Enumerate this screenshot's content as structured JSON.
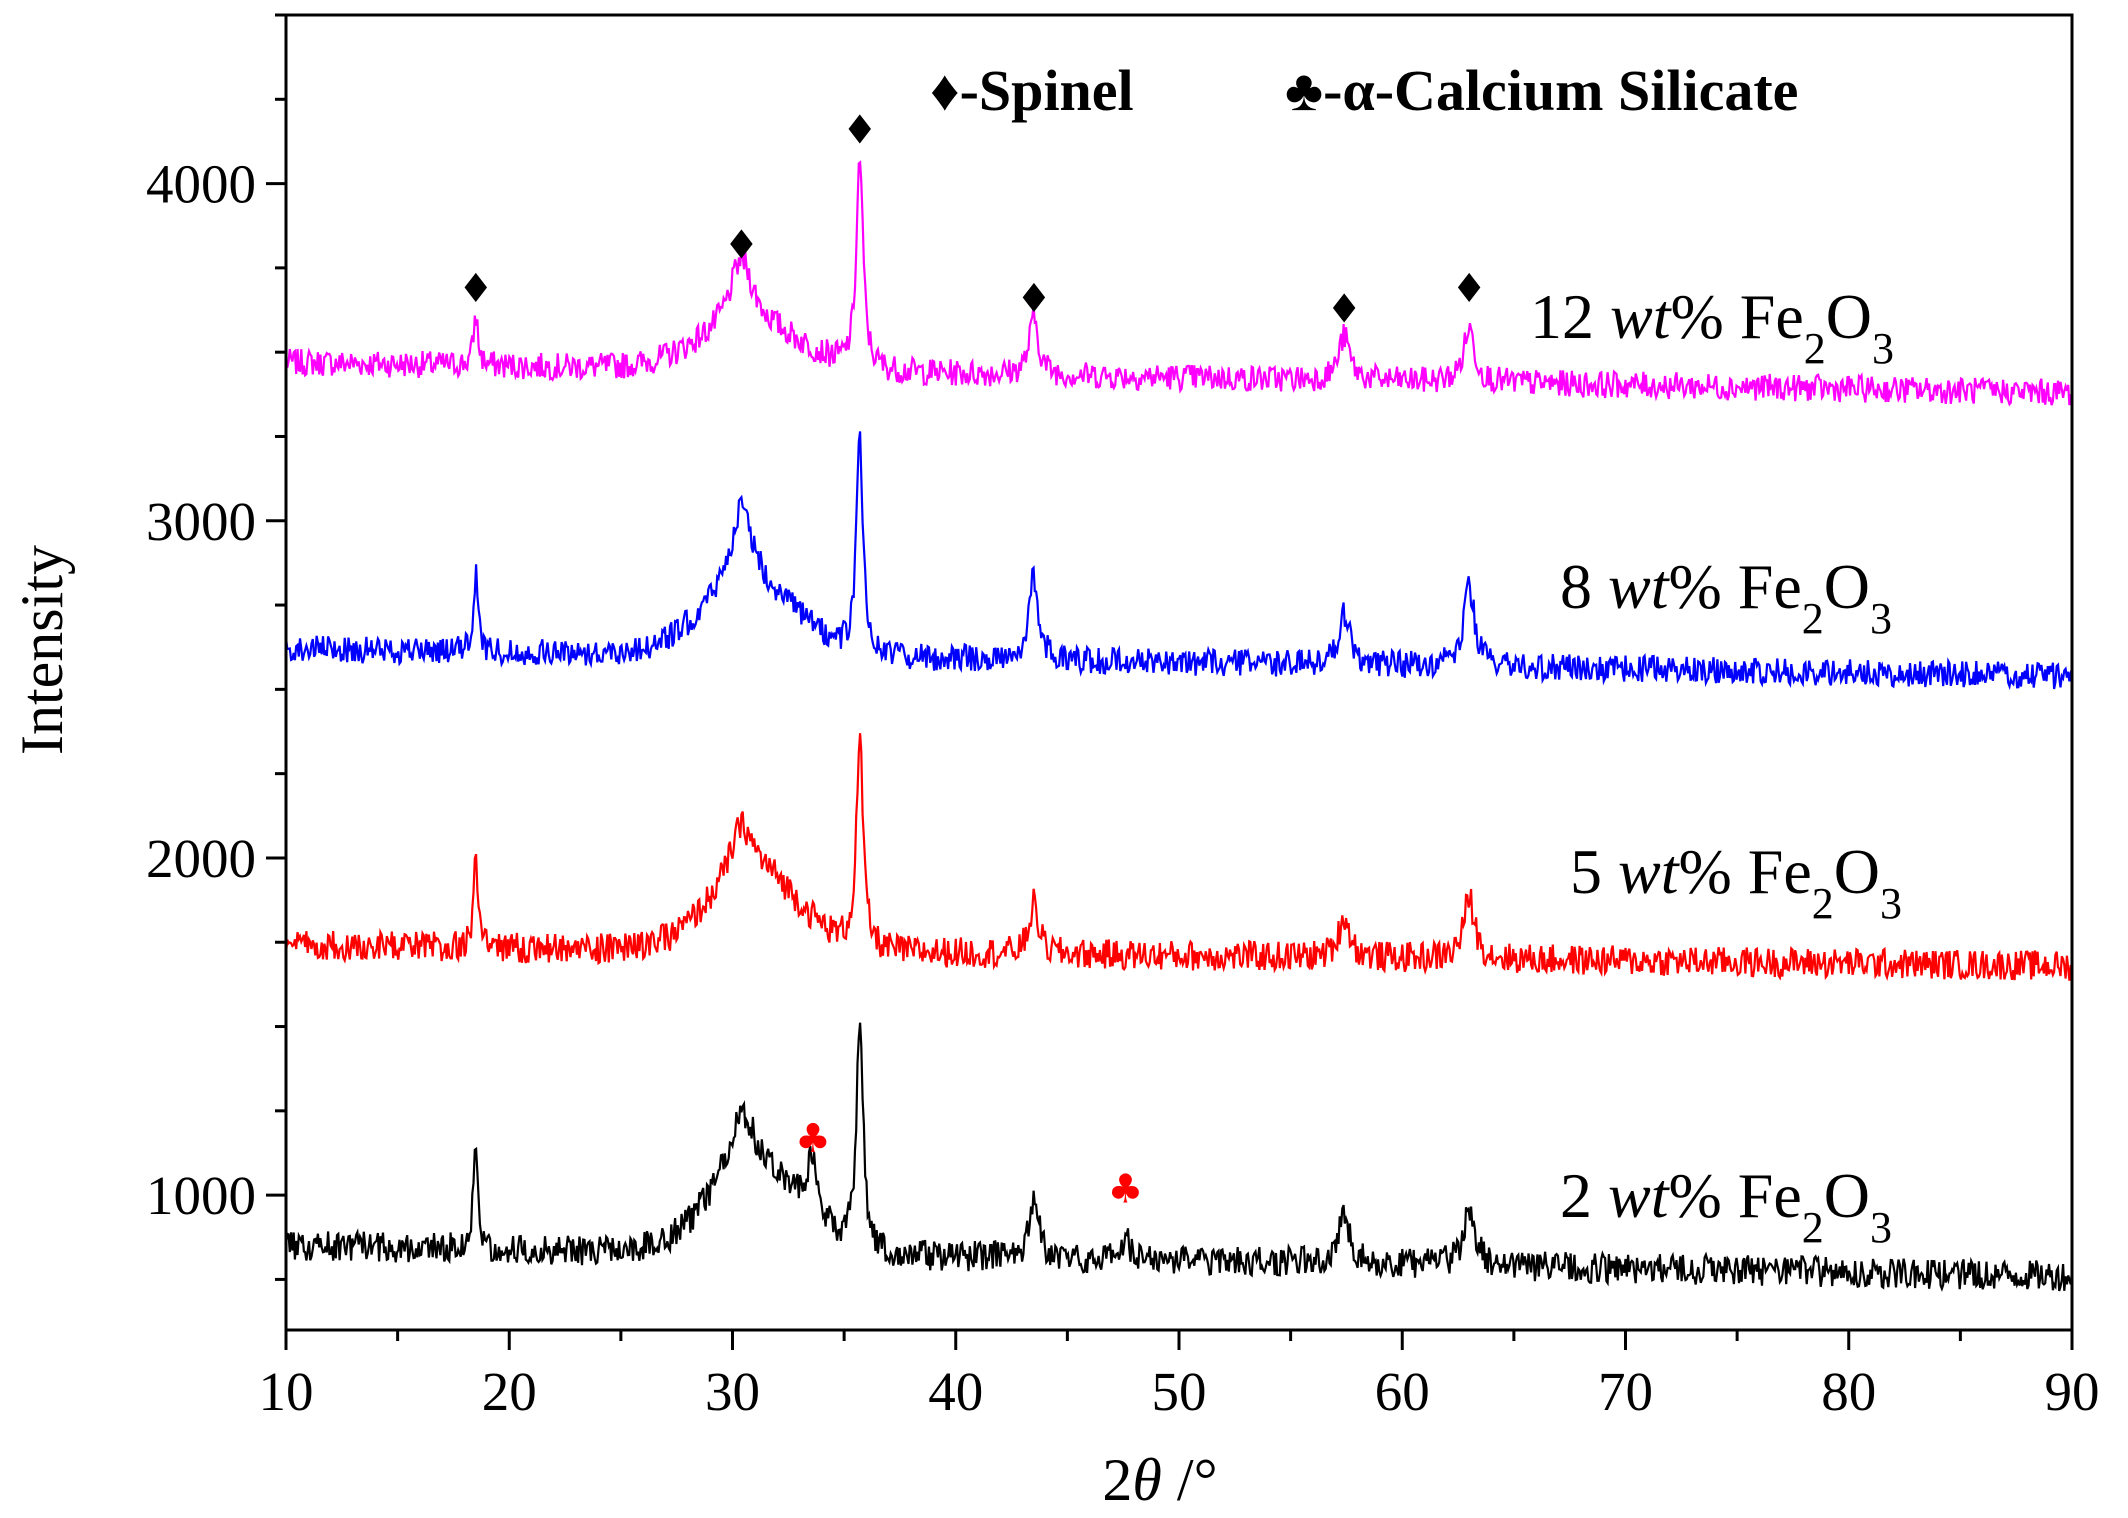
{
  "chart_data": {
    "type": "line",
    "title": "",
    "xlabel_prefix": "2",
    "xlabel_var": "θ",
    "xlabel_unit": " /°",
    "ylabel": "Intensity",
    "xlim": [
      10,
      90
    ],
    "ylim": [
      600,
      4500
    ],
    "x_ticks": [
      10,
      20,
      30,
      40,
      50,
      60,
      70,
      80,
      90
    ],
    "x_tick_labels": [
      "10",
      "20",
      "30",
      "40",
      "50",
      "60",
      "70",
      "80",
      "90"
    ],
    "y_ticks": [
      1000,
      2000,
      3000,
      4000
    ],
    "y_tick_labels": [
      "1000",
      "2000",
      "3000",
      "4000"
    ],
    "grid": false,
    "legend_position": "top-right",
    "legend": [
      {
        "symbol": "♦",
        "text": "-Spinel",
        "color": "#000000"
      },
      {
        "symbol": "♣",
        "text": "-α-Calcium Silicate",
        "color": "#000000"
      }
    ],
    "peaks_2theta": [
      18.5,
      30.4,
      35.7,
      43.5,
      57.4,
      63.0
    ],
    "peak_widths": [
      0.12,
      0.6,
      0.18,
      0.25,
      0.3,
      0.3
    ],
    "series": [
      {
        "label_num": "12",
        "label_unit": "wt",
        "label_pct": "%",
        "label_fe": "Fe",
        "label_sub1": "2",
        "label_o": "O",
        "label_sub2": "3",
        "color": "#ff00ff",
        "baseline_start": 3470,
        "baseline_end": 3380,
        "noise": 40,
        "hump_center": 30.8,
        "hump_height": 130,
        "hump_width": 3.2,
        "peak_heights": [
          150,
          200,
          620,
          170,
          130,
          160
        ]
      },
      {
        "label_num": "8",
        "label_unit": "wt",
        "label_pct": "%",
        "label_fe": "Fe",
        "label_sub1": "2",
        "label_o": "O",
        "label_sub2": "3",
        "color": "#0000ff",
        "baseline_start": 2620,
        "baseline_end": 2540,
        "noise": 40,
        "hump_center": 30.8,
        "hump_height": 200,
        "hump_width": 3.0,
        "peak_heights": [
          230,
          240,
          620,
          250,
          150,
          230
        ]
      },
      {
        "label_num": "5",
        "label_unit": "wt",
        "label_pct": "%",
        "label_fe": "Fe",
        "label_sub1": "2",
        "label_o": "O",
        "label_sub2": "3",
        "color": "#ff0000",
        "baseline_start": 1740,
        "baseline_end": 1680,
        "noise": 45,
        "hump_center": 31.0,
        "hump_height": 230,
        "hump_width": 2.8,
        "peak_heights": [
          270,
          150,
          620,
          150,
          120,
          180
        ]
      },
      {
        "label_num": "2",
        "label_unit": "wt",
        "label_pct": "%",
        "label_fe": "Fe",
        "label_sub1": "2",
        "label_o": "O",
        "label_sub2": "3",
        "color": "#000000",
        "baseline_start": 850,
        "baseline_end": 760,
        "noise": 45,
        "hump_center": 31.0,
        "hump_height": 260,
        "hump_width": 2.8,
        "peak_heights": [
          330,
          170,
          680,
          180,
          150,
          180
        ],
        "extra_peaks": [
          {
            "x": 33.6,
            "h": 180,
            "w": 0.3
          },
          {
            "x": 47.6,
            "h": 60,
            "w": 0.3
          }
        ]
      }
    ],
    "spinel_markers": [
      {
        "x": 18.5,
        "y": 3690
      },
      {
        "x": 30.4,
        "y": 3820
      },
      {
        "x": 35.7,
        "y": 4160
      },
      {
        "x": 43.5,
        "y": 3660
      },
      {
        "x": 57.4,
        "y": 3630
      },
      {
        "x": 63.0,
        "y": 3690
      }
    ],
    "calcium_markers": [
      {
        "x": 33.6,
        "y": 1170
      },
      {
        "x": 47.6,
        "y": 1020
      }
    ],
    "marker_symbols": {
      "spinel": "♦",
      "calcium": "♣"
    },
    "marker_colors": {
      "spinel": "#000000",
      "calcium": "#ff0000"
    }
  }
}
